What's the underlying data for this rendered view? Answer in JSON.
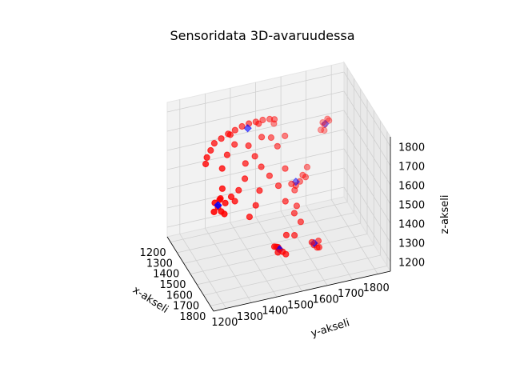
{
  "chart_data": {
    "type": "scatter",
    "projection": "3d",
    "title": "Sensoridata 3D-avaruudessa",
    "xlabel": "x-akseli",
    "ylabel": "y-akseli",
    "zlabel": "z-akseli",
    "xlim": [
      1150,
      1850
    ],
    "ylim": [
      1150,
      1850
    ],
    "zlim": [
      1150,
      1850
    ],
    "xticks": [
      "1200",
      "1300",
      "1400",
      "1500",
      "1600",
      "1700",
      "1800"
    ],
    "yticks": [
      "1200",
      "1300",
      "1400",
      "1500",
      "1600",
      "1700",
      "1800"
    ],
    "zticks": [
      "1200",
      "1300",
      "1400",
      "1500",
      "1600",
      "1700",
      "1800"
    ],
    "grid": true,
    "colors": {
      "points": "#ff0000",
      "markers": "#0000ff",
      "pane": "#f2f2f2",
      "grid": "#d0d0d0"
    },
    "series": [
      {
        "marker": "circle",
        "color": "#ff0000",
        "points": [
          [
            1480,
            1250,
            1790
          ],
          [
            1470,
            1280,
            1800
          ],
          [
            1460,
            1310,
            1810
          ],
          [
            1450,
            1340,
            1815
          ],
          [
            1440,
            1370,
            1820
          ],
          [
            1430,
            1400,
            1820
          ],
          [
            1420,
            1430,
            1815
          ],
          [
            1410,
            1460,
            1810
          ],
          [
            1400,
            1490,
            1800
          ],
          [
            1395,
            1510,
            1790
          ],
          [
            1500,
            1230,
            1770
          ],
          [
            1520,
            1210,
            1750
          ],
          [
            1540,
            1200,
            1730
          ],
          [
            1455,
            1320,
            1800
          ],
          [
            1425,
            1440,
            1805
          ],
          [
            1650,
            1220,
            1560
          ],
          [
            1660,
            1230,
            1540
          ],
          [
            1640,
            1210,
            1580
          ],
          [
            1670,
            1240,
            1530
          ],
          [
            1655,
            1225,
            1600
          ],
          [
            1645,
            1250,
            1570
          ],
          [
            1665,
            1200,
            1550
          ],
          [
            1630,
            1235,
            1590
          ],
          [
            1500,
            1550,
            1500
          ],
          [
            1490,
            1570,
            1480
          ],
          [
            1510,
            1560,
            1470
          ],
          [
            1480,
            1600,
            1520
          ],
          [
            1495,
            1585,
            1500
          ],
          [
            1470,
            1620,
            1550
          ],
          [
            1485,
            1610,
            1510
          ],
          [
            1400,
            1700,
            1720
          ],
          [
            1390,
            1710,
            1700
          ],
          [
            1410,
            1690,
            1690
          ],
          [
            1395,
            1720,
            1730
          ],
          [
            1405,
            1705,
            1680
          ],
          [
            1380,
            1730,
            1710
          ],
          [
            1700,
            1450,
            1300
          ],
          [
            1710,
            1460,
            1290
          ],
          [
            1690,
            1440,
            1310
          ],
          [
            1720,
            1470,
            1280
          ],
          [
            1700,
            1430,
            1320
          ],
          [
            1680,
            1450,
            1300
          ],
          [
            1715,
            1440,
            1295
          ],
          [
            1650,
            1600,
            1250
          ],
          [
            1660,
            1610,
            1240
          ],
          [
            1640,
            1620,
            1260
          ],
          [
            1655,
            1590,
            1270
          ],
          [
            1670,
            1615,
            1245
          ],
          [
            1500,
            1380,
            1750
          ],
          [
            1520,
            1400,
            1700
          ],
          [
            1540,
            1420,
            1650
          ],
          [
            1460,
            1480,
            1740
          ],
          [
            1480,
            1500,
            1700
          ],
          [
            1530,
            1360,
            1680
          ],
          [
            1560,
            1350,
            1620
          ],
          [
            1580,
            1320,
            1580
          ],
          [
            1600,
            1300,
            1540
          ],
          [
            1590,
            1400,
            1560
          ],
          [
            1610,
            1380,
            1500
          ],
          [
            1630,
            1350,
            1460
          ],
          [
            1550,
            1450,
            1600
          ],
          [
            1570,
            1480,
            1550
          ],
          [
            1600,
            1500,
            1480
          ],
          [
            1620,
            1530,
            1420
          ],
          [
            1640,
            1550,
            1380
          ],
          [
            1580,
            1550,
            1430
          ],
          [
            1690,
            1480,
            1360
          ],
          [
            1660,
            1520,
            1330
          ],
          [
            1520,
            1520,
            1600
          ],
          [
            1440,
            1540,
            1720
          ],
          [
            1470,
            1440,
            1760
          ],
          [
            1350,
            1520,
            1740
          ],
          [
            1600,
            1250,
            1620
          ],
          [
            1620,
            1280,
            1580
          ],
          [
            1560,
            1260,
            1700
          ],
          [
            1520,
            1290,
            1740
          ],
          [
            1480,
            1330,
            1760
          ]
        ]
      },
      {
        "marker": "diamond",
        "color": "#0000ff",
        "points": [
          [
            1450,
            1390,
            1810
          ],
          [
            1650,
            1220,
            1570
          ],
          [
            1490,
            1570,
            1500
          ],
          [
            1400,
            1710,
            1710
          ],
          [
            1700,
            1450,
            1300
          ],
          [
            1650,
            1600,
            1260
          ]
        ]
      }
    ]
  }
}
